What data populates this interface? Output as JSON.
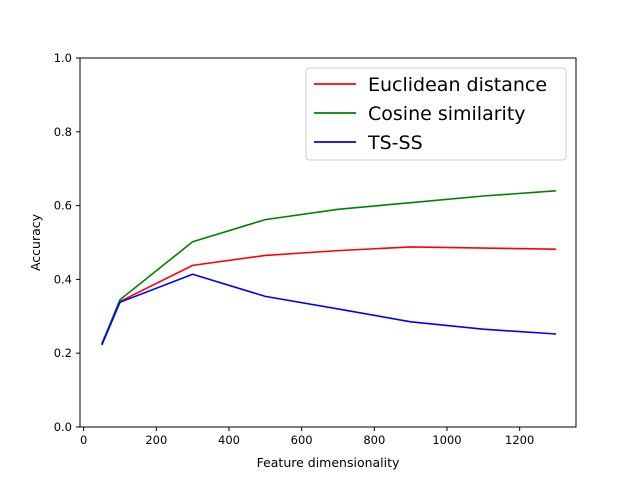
{
  "chart_data": {
    "type": "line",
    "xlabel": "Feature dimensionality",
    "ylabel": "Accuracy",
    "xlim": [
      -10,
      1355
    ],
    "ylim": [
      0.0,
      1.0
    ],
    "xticks": [
      0,
      200,
      400,
      600,
      800,
      1000,
      1200
    ],
    "xtick_labels": [
      "0",
      "200",
      "400",
      "600",
      "800",
      "1000",
      "1200"
    ],
    "yticks": [
      0.0,
      0.2,
      0.4,
      0.6,
      0.8,
      1.0
    ],
    "ytick_labels": [
      "0.0",
      "0.2",
      "0.4",
      "0.6",
      "0.8",
      "1.0"
    ],
    "grid": false,
    "legend_position": "top-right",
    "series": [
      {
        "name": "Euclidean distance",
        "color": "#ff0000",
        "x": [
          50,
          100,
          300,
          500,
          700,
          900,
          1100,
          1300
        ],
        "y": [
          0.225,
          0.34,
          0.438,
          0.465,
          0.478,
          0.488,
          0.485,
          0.482
        ]
      },
      {
        "name": "Cosine similarity",
        "color": "#008000",
        "x": [
          50,
          100,
          300,
          500,
          700,
          900,
          1100,
          1300
        ],
        "y": [
          0.225,
          0.345,
          0.502,
          0.562,
          0.59,
          0.608,
          0.626,
          0.64
        ]
      },
      {
        "name": "TS-SS",
        "color": "#0000ff",
        "x": [
          50,
          100,
          300,
          500,
          700,
          900,
          1100,
          1300
        ],
        "y": [
          0.222,
          0.338,
          0.414,
          0.354,
          0.32,
          0.285,
          0.265,
          0.252
        ]
      }
    ]
  }
}
